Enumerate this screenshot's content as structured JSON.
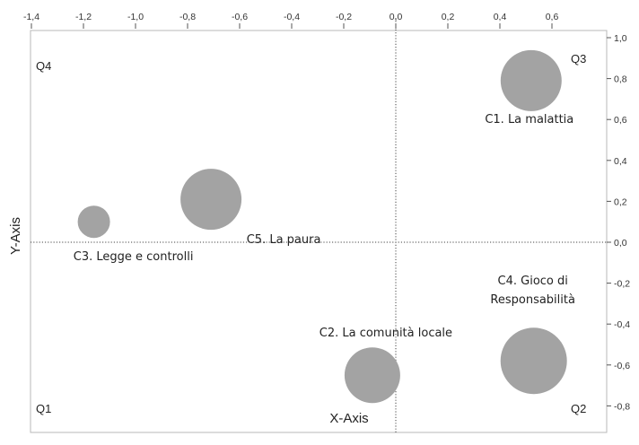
{
  "chart_data": {
    "type": "scatter",
    "subtype": "bubble",
    "xlabel": "X-Axis",
    "ylabel": "Y-Axis",
    "xlim": [
      -1.4,
      0.8
    ],
    "ylim": [
      -0.9,
      1.1
    ],
    "x_ticks": [
      "-1,4",
      "-1,2",
      "-1,0",
      "-0,8",
      "-0,6",
      "-0,4",
      "-0,2",
      "0,0",
      "0,2",
      "0,4",
      "0,6"
    ],
    "x_tick_values": [
      -1.4,
      -1.2,
      -1.0,
      -0.8,
      -0.6,
      -0.4,
      -0.2,
      0.0,
      0.2,
      0.4,
      0.6
    ],
    "y_ticks": [
      "1,0",
      "0,8",
      "0,6",
      "0,4",
      "0,2",
      "0,0",
      "-0,2",
      "-0,4",
      "-0,6",
      "-0,8"
    ],
    "y_tick_values": [
      1.0,
      0.8,
      0.6,
      0.4,
      0.2,
      0.0,
      -0.2,
      -0.4,
      -0.6,
      -0.8
    ],
    "quadrants": [
      "Q4",
      "Q3",
      "Q1",
      "Q2"
    ],
    "bubble_color": "#a3a3a3",
    "points": [
      {
        "label": "C1. La malattia",
        "x": 0.52,
        "y": 0.79,
        "size": 34
      },
      {
        "label": "C2. La comunità locale",
        "x": -0.09,
        "y": -0.65,
        "size": 31
      },
      {
        "label": "C3. Legge e controlli",
        "x": -1.16,
        "y": 0.1,
        "size": 18
      },
      {
        "label": "C4. Gioco di Responsabilità",
        "label_lines": [
          "C4. Gioco di",
          "Responsabilità"
        ],
        "x": 0.53,
        "y": -0.58,
        "size": 37
      },
      {
        "label": "C5. La paura",
        "x": -0.71,
        "y": 0.21,
        "size": 34
      }
    ]
  }
}
